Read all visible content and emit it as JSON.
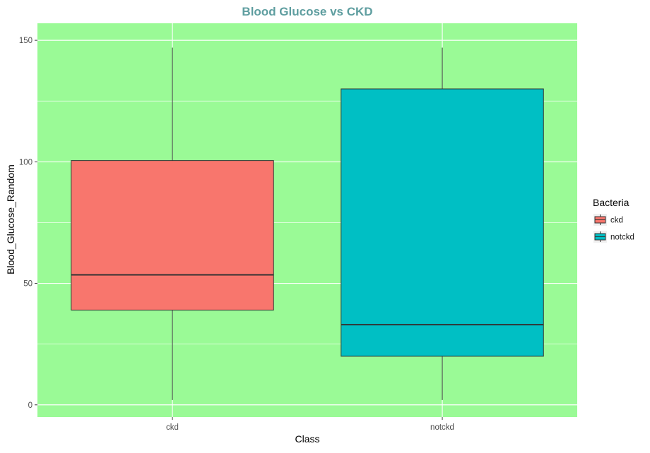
{
  "chart_data": {
    "type": "box",
    "title": "Blood Glucose vs CKD",
    "xlabel": "Class",
    "ylabel": "Blood_Glucose_Random",
    "categories": [
      "ckd",
      "notckd"
    ],
    "boxes": [
      {
        "category": "ckd",
        "min": 2,
        "q1": 39,
        "median": 53.5,
        "q3": 100.5,
        "max": 147,
        "fill": "#F8766D"
      },
      {
        "category": "notckd",
        "min": 2,
        "q1": 20,
        "median": 33,
        "q3": 130,
        "max": 147,
        "fill": "#00BFC4"
      }
    ],
    "ylim": [
      -5,
      157
    ],
    "yticks": [
      0,
      50,
      100,
      150
    ],
    "ytick_labels": [
      "0",
      "50",
      "100",
      "150"
    ],
    "grid": true,
    "legend": {
      "title": "Bacteria",
      "position": "right",
      "items": [
        {
          "label": "ckd",
          "color": "#F8766D"
        },
        {
          "label": "notckd",
          "color": "#00BFC4"
        }
      ]
    },
    "colors": {
      "panel_background": "#9AFA96",
      "title": "#5F9EA0",
      "grid": "#ffffff"
    }
  }
}
